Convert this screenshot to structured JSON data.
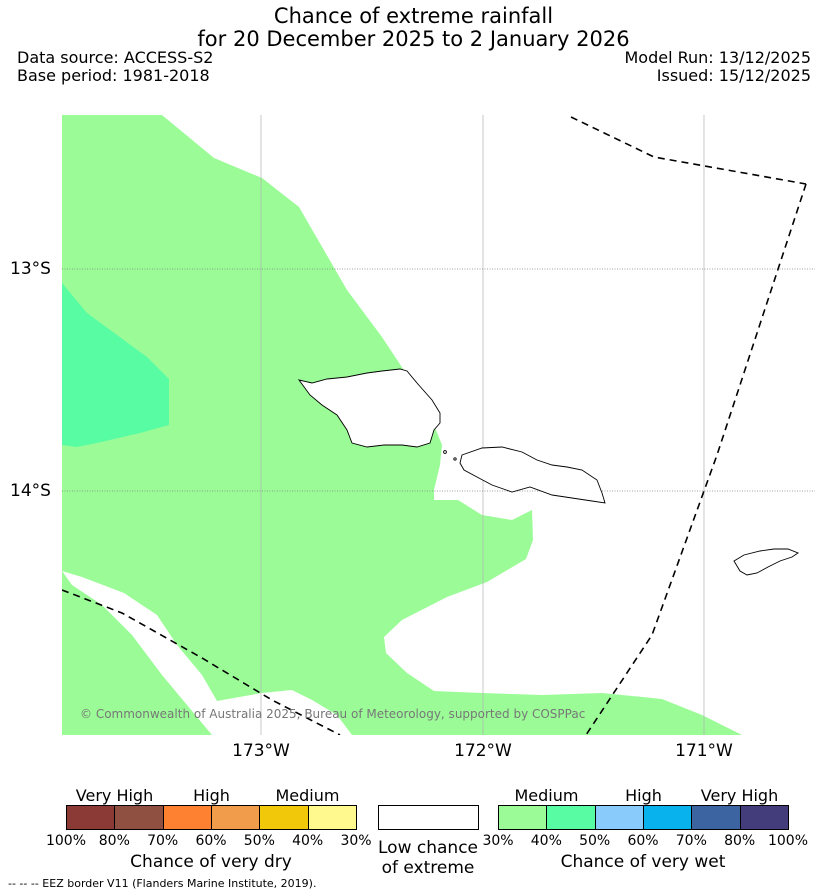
{
  "header": {
    "title_line1": "Chance of extreme rainfall",
    "title_line2": "for 20 December 2025 to 2 January 2026",
    "data_source": "Data source: ACCESS-S2",
    "base_period": "Base period: 1981-2018",
    "model_run": "Model Run: 13/12/2025",
    "issued": "Issued: 15/12/2025"
  },
  "map": {
    "lat_labels": [
      "13°S",
      "14°S"
    ],
    "lon_labels": [
      "173°W",
      "172°W",
      "171°W"
    ],
    "credit": "© Commonwealth of Australia 2025, Bureau of Meteorology, supported by COSPPac",
    "colors": {
      "medium_wet": "#9bfc97",
      "medium_wet_40": "#57fca3",
      "coast": "#000000",
      "eez": "#000000"
    }
  },
  "legend": {
    "dry": {
      "headings": [
        "Very High",
        "High",
        "Medium"
      ],
      "ticks": [
        "100%",
        "80%",
        "70%",
        "60%",
        "50%",
        "40%",
        "30%"
      ],
      "caption": "Chance of very dry",
      "colors": [
        "#8b3a35",
        "#8f4f41",
        "#fd8130",
        "#f09c4a",
        "#f1c90a",
        "#fff98e"
      ]
    },
    "low": {
      "caption_line1": "Low chance",
      "caption_line2": "of extreme",
      "color": "#ffffff"
    },
    "wet": {
      "headings": [
        "Medium",
        "High",
        "Very High"
      ],
      "ticks": [
        "30%",
        "40%",
        "50%",
        "60%",
        "70%",
        "80%",
        "100%"
      ],
      "caption": "Chance of very wet",
      "colors": [
        "#9bfc97",
        "#57fca3",
        "#89cbfb",
        "#08b2ec",
        "#3c64a0",
        "#443d7b"
      ]
    }
  },
  "footnote": "--  --  -- EEZ border V11 (Flanders Marine Institute, 2019)."
}
